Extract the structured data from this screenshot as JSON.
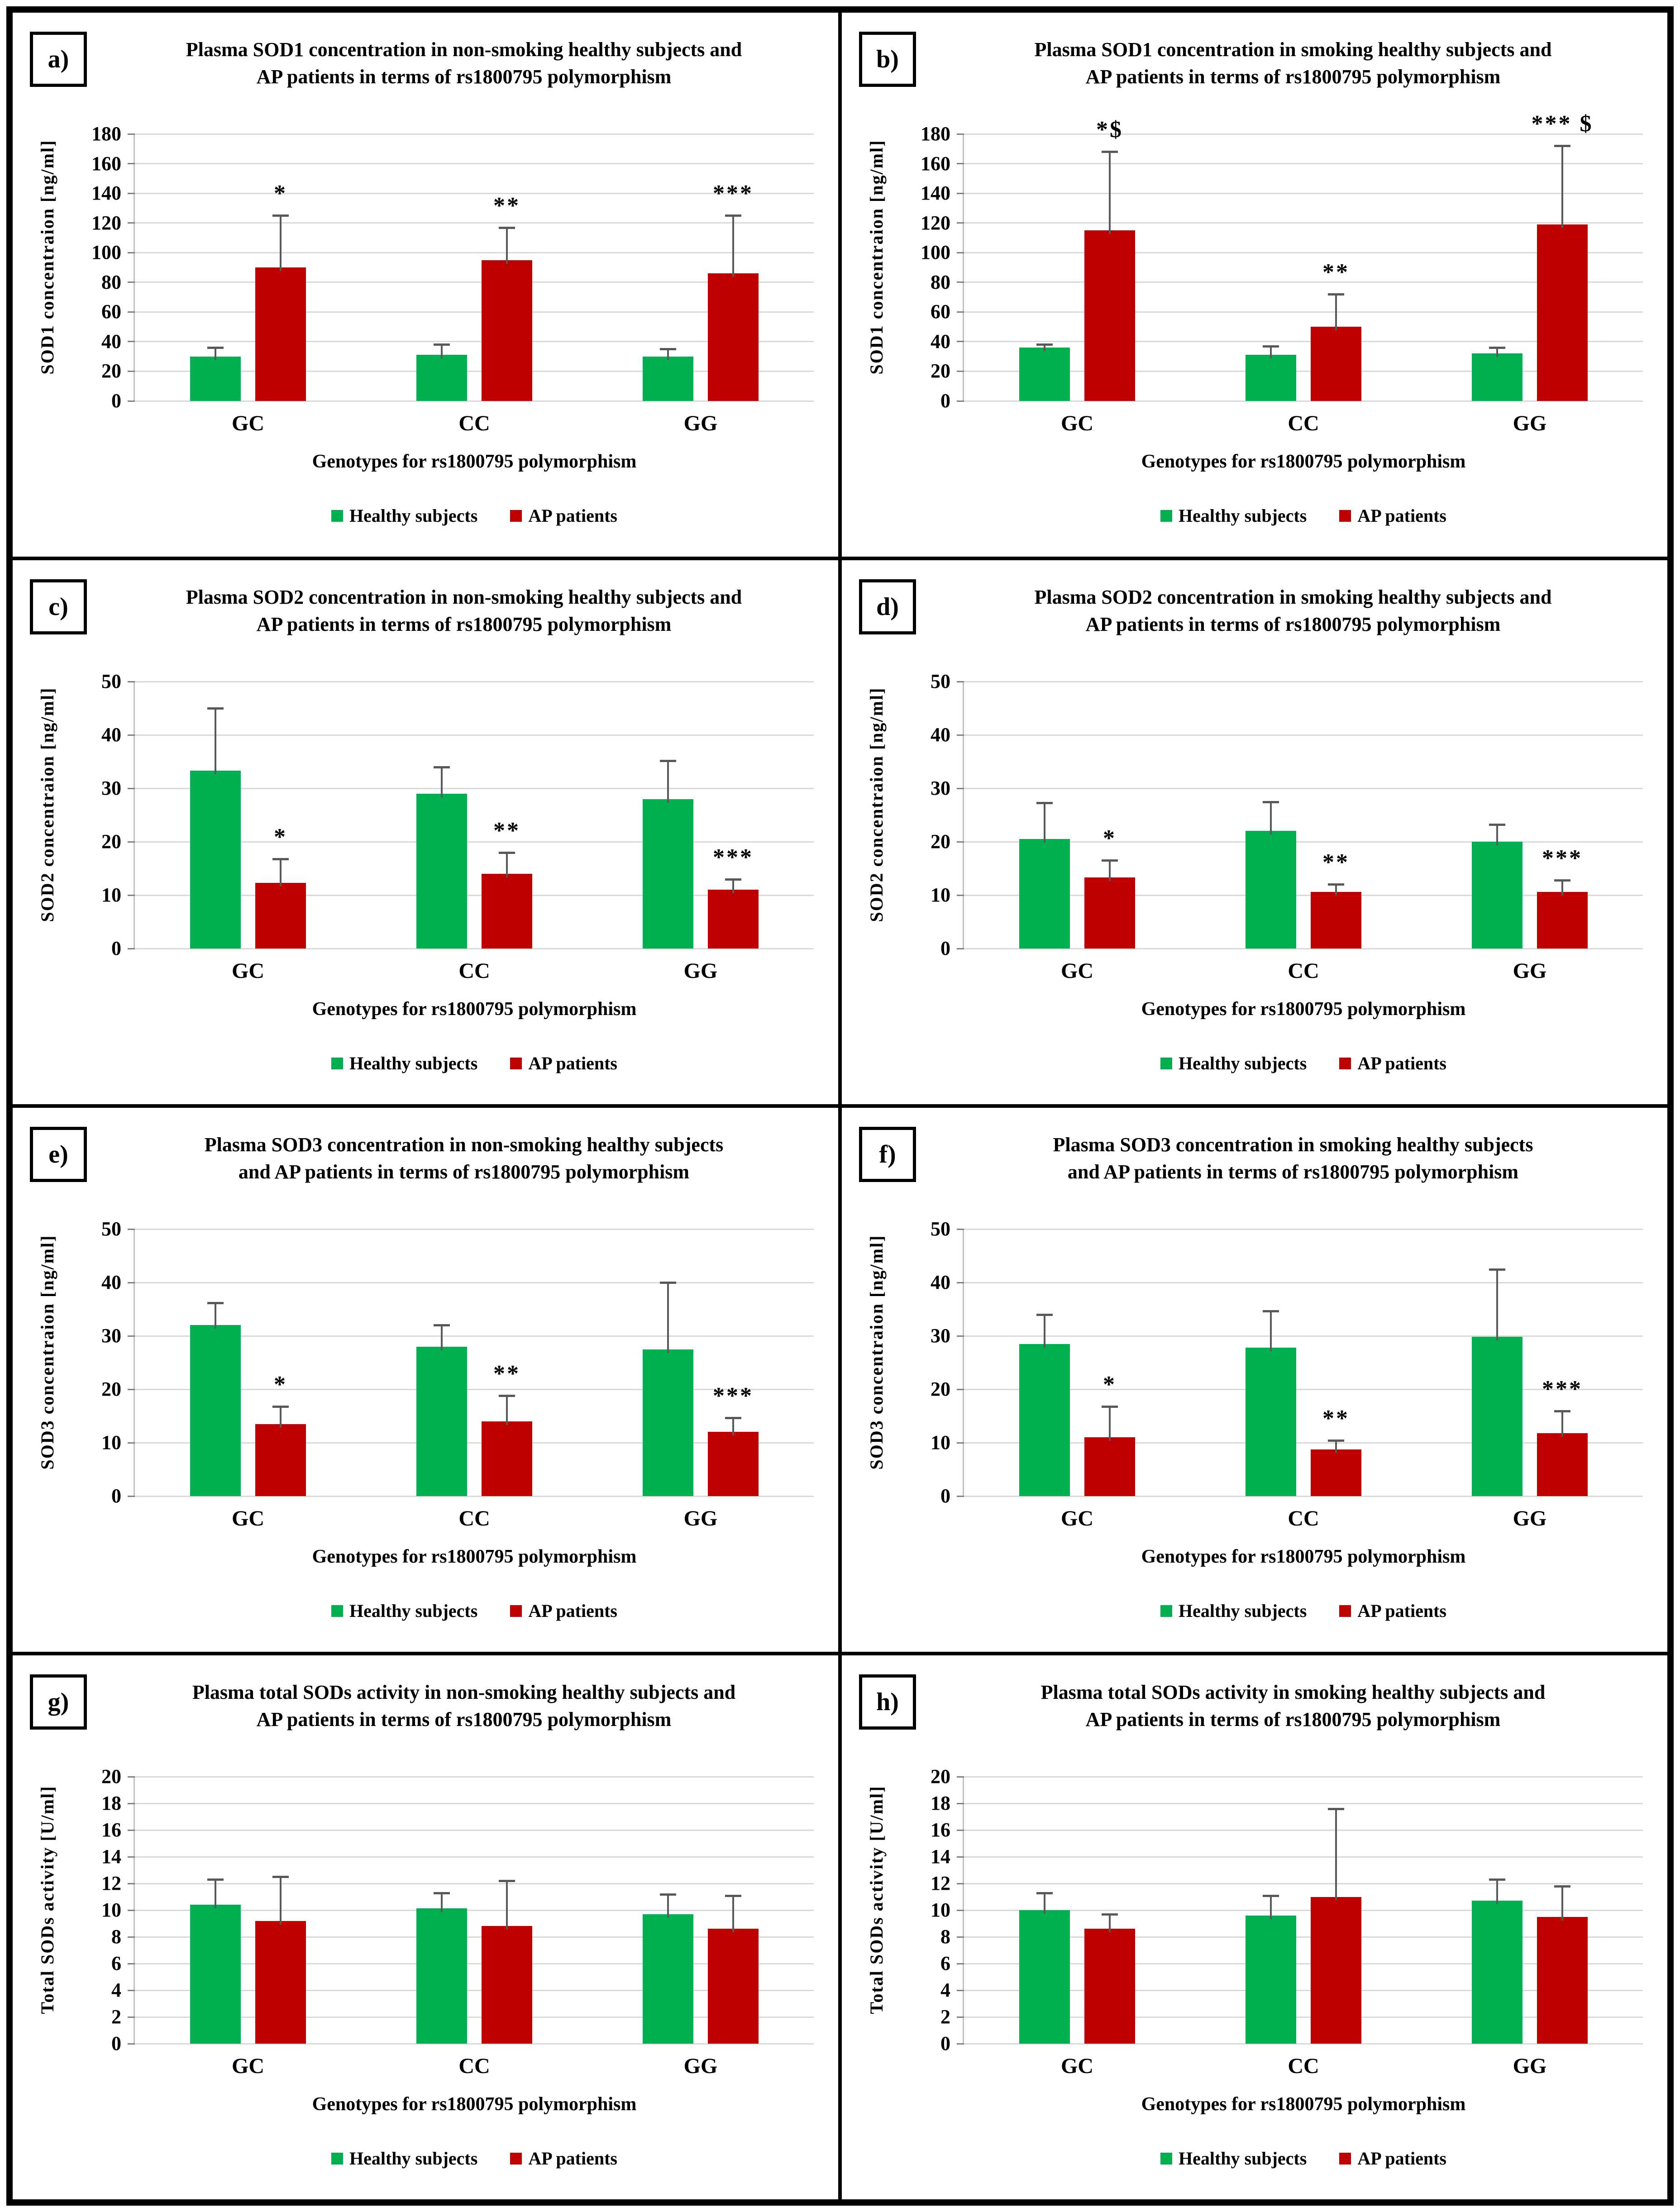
{
  "legend": {
    "healthy_label": "Healthy subjects",
    "ap_label": "AP patients"
  },
  "colors": {
    "healthy": "#00B050",
    "ap": "#C00000",
    "error_bar": "#595959",
    "gridline": "#D9D9D9"
  },
  "chart_data": [
    {
      "panel_label": "a)",
      "type": "bar",
      "title_lines": [
        "Plasma SOD1 concentration in non-smoking healthy subjects and",
        "AP patients in terms of rs1800795 polymorphism"
      ],
      "ylabel": "SOD1 concentraion [ng/ml]",
      "xlabel": "Genotypes for rs1800795 polymorphism",
      "categories": [
        "GC",
        "CC",
        "GG"
      ],
      "ylim": [
        0,
        180
      ],
      "ytick_step": 20,
      "grid": true,
      "legend_position": "bottom",
      "series": [
        {
          "name": "Healthy subjects",
          "values": [
            30,
            31,
            30
          ],
          "errors": [
            6,
            7,
            5
          ]
        },
        {
          "name": "AP patients",
          "values": [
            90,
            95,
            86
          ],
          "errors": [
            35,
            22,
            39
          ]
        }
      ],
      "annotations": [
        "*",
        "**",
        "***"
      ]
    },
    {
      "panel_label": "b)",
      "type": "bar",
      "title_lines": [
        "Plasma SOD1 concentration in smoking healthy subjects and",
        "AP patients in terms of rs1800795 polymorphism"
      ],
      "ylabel": "SOD1 concentraion [ng/ml]",
      "xlabel": "Genotypes for rs1800795 polymorphism",
      "categories": [
        "GC",
        "CC",
        "GG"
      ],
      "ylim": [
        0,
        180
      ],
      "ytick_step": 20,
      "grid": true,
      "legend_position": "bottom",
      "series": [
        {
          "name": "Healthy subjects",
          "values": [
            36,
            31,
            32
          ],
          "errors": [
            2,
            6,
            4
          ]
        },
        {
          "name": "AP patients",
          "values": [
            115,
            50,
            119
          ],
          "errors": [
            53,
            22,
            53
          ]
        }
      ],
      "annotations": [
        "*$",
        "**",
        "*** $"
      ]
    },
    {
      "panel_label": "c)",
      "type": "bar",
      "title_lines": [
        "Plasma SOD2 concentration in non-smoking healthy subjects and",
        "AP patients in terms of rs1800795 polymorphism"
      ],
      "ylabel": "SOD2 concentraion [ng/ml]",
      "xlabel": "Genotypes for rs1800795 polymorphism",
      "categories": [
        "GC",
        "CC",
        "GG"
      ],
      "ylim": [
        0,
        50
      ],
      "ytick_step": 10,
      "grid": true,
      "legend_position": "bottom",
      "series": [
        {
          "name": "Healthy subjects",
          "values": [
            33.3,
            29,
            28
          ],
          "errors": [
            11.7,
            5,
            7.2
          ]
        },
        {
          "name": "AP patients",
          "values": [
            12.3,
            14,
            11
          ],
          "errors": [
            4.5,
            4,
            2
          ]
        }
      ],
      "annotations": [
        "*",
        "**",
        "***"
      ]
    },
    {
      "panel_label": "d)",
      "type": "bar",
      "title_lines": [
        "Plasma SOD2 concentration in smoking healthy subjects and",
        "AP patients in terms of rs1800795 polymorphism"
      ],
      "ylabel": "SOD2 concentraion [ng/ml]",
      "xlabel": "Genotypes for rs1800795 polymorphism",
      "categories": [
        "GC",
        "CC",
        "GG"
      ],
      "ylim": [
        0,
        50
      ],
      "ytick_step": 10,
      "grid": true,
      "legend_position": "bottom",
      "series": [
        {
          "name": "Healthy subjects",
          "values": [
            20.5,
            22,
            20
          ],
          "errors": [
            6.8,
            5.5,
            3.2
          ]
        },
        {
          "name": "AP patients",
          "values": [
            13.3,
            10.6,
            10.6
          ],
          "errors": [
            3.2,
            1.4,
            2.2
          ]
        }
      ],
      "annotations": [
        "*",
        "**",
        "***"
      ]
    },
    {
      "panel_label": "e)",
      "type": "bar",
      "title_lines": [
        "Plasma SOD3 concentration in non-smoking healthy subjects",
        "and AP patients in terms of rs1800795 polymorphism"
      ],
      "ylabel": "SOD3 concentraion [ng/ml]",
      "xlabel": "Genotypes for rs1800795 polymorphism",
      "categories": [
        "GC",
        "CC",
        "GG"
      ],
      "ylim": [
        0,
        50
      ],
      "ytick_step": 10,
      "grid": true,
      "legend_position": "bottom",
      "series": [
        {
          "name": "Healthy subjects",
          "values": [
            32,
            28,
            27.5
          ],
          "errors": [
            4.2,
            4,
            12.5
          ]
        },
        {
          "name": "AP patients",
          "values": [
            13.5,
            14,
            12
          ],
          "errors": [
            3.3,
            4.8,
            2.7
          ]
        }
      ],
      "annotations": [
        "*",
        "**",
        "***"
      ]
    },
    {
      "panel_label": "f)",
      "type": "bar",
      "title_lines": [
        "Plasma SOD3 concentration in smoking healthy subjects",
        "and AP patients in terms of rs1800795 polymorphism"
      ],
      "ylabel": "SOD3 concentraion [ng/ml]",
      "xlabel": "Genotypes for rs1800795 polymorphism",
      "categories": [
        "GC",
        "CC",
        "GG"
      ],
      "ylim": [
        0,
        50
      ],
      "ytick_step": 10,
      "grid": true,
      "legend_position": "bottom",
      "series": [
        {
          "name": "Healthy subjects",
          "values": [
            28.5,
            27.8,
            29.8
          ],
          "errors": [
            5.5,
            6.9,
            12.7
          ]
        },
        {
          "name": "AP patients",
          "values": [
            11,
            8.7,
            11.8
          ],
          "errors": [
            5.8,
            1.7,
            4.1
          ]
        }
      ],
      "annotations": [
        "*",
        "**",
        "***"
      ]
    },
    {
      "panel_label": "g)",
      "type": "bar",
      "title_lines": [
        "Plasma total SODs activity in non-smoking healthy subjects and",
        "AP patients in terms of rs1800795 polymorphism"
      ],
      "ylabel": "Total SODs activity [U/ml]",
      "xlabel": "Genotypes for rs1800795 polymorphism",
      "categories": [
        "GC",
        "CC",
        "GG"
      ],
      "ylim": [
        0,
        20
      ],
      "ytick_step": 2,
      "grid": true,
      "legend_position": "bottom",
      "series": [
        {
          "name": "Healthy subjects",
          "values": [
            10.4,
            10.15,
            9.7
          ],
          "errors": [
            1.9,
            1.15,
            1.5
          ]
        },
        {
          "name": "AP patients",
          "values": [
            9.2,
            8.8,
            8.6
          ],
          "errors": [
            3.3,
            3.4,
            2.5
          ]
        }
      ],
      "annotations": [
        "",
        "",
        ""
      ]
    },
    {
      "panel_label": "h)",
      "type": "bar",
      "title_lines": [
        "Plasma total SODs activity in smoking healthy subjects and",
        "AP patients in terms of rs1800795 polymorphism"
      ],
      "ylabel": "Total SODs activity [U/ml]",
      "xlabel": "Genotypes for rs1800795 polymorphism",
      "categories": [
        "GC",
        "CC",
        "GG"
      ],
      "ylim": [
        0,
        20
      ],
      "ytick_step": 2,
      "grid": true,
      "legend_position": "bottom",
      "series": [
        {
          "name": "Healthy subjects",
          "values": [
            10.0,
            9.6,
            10.7
          ],
          "errors": [
            1.3,
            1.5,
            1.6
          ]
        },
        {
          "name": "AP patients",
          "values": [
            8.6,
            11.0,
            9.5
          ],
          "errors": [
            1.1,
            6.6,
            2.3
          ]
        }
      ],
      "annotations": [
        "",
        "",
        ""
      ]
    }
  ]
}
